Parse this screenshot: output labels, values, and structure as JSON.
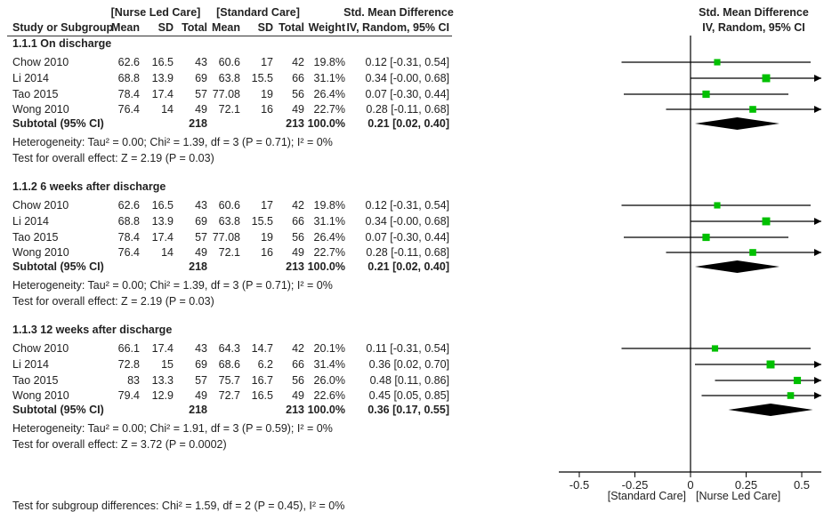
{
  "header": {
    "group1": "[Nurse Led Care]",
    "group2": "[Standard Care]",
    "effect_title": "Std. Mean Difference",
    "effect_sub": "IV, Random, 95% CI",
    "plot_title": "Std. Mean Difference",
    "plot_sub": "IV, Random, 95% CI",
    "columns": [
      "Study or Subgroup",
      "Mean",
      "SD",
      "Total",
      "Mean",
      "SD",
      "Total",
      "Weight"
    ]
  },
  "chart_data": {
    "type": "forest",
    "xlim": [
      -0.5,
      0.5
    ],
    "xticks": [
      "-0.5",
      "-0.25",
      "0",
      "0.25",
      "0.5"
    ],
    "xtick_values": [
      -0.5,
      -0.25,
      0,
      0.25,
      0.5
    ],
    "xlabel_left": "[Standard Care]",
    "xlabel_right": "[Nurse Led Care]",
    "marker_color": "#00c000",
    "subgroups": [
      {
        "title": "1.1.1 On discharge",
        "studies": [
          {
            "name": "Chow 2010",
            "m1": "62.6",
            "sd1": "16.5",
            "n1": "43",
            "m2": "60.6",
            "sd2": "17",
            "n2": "42",
            "weight": "19.8%",
            "ci_text": "0.12 [-0.31, 0.54]",
            "est": 0.12,
            "lo": -0.31,
            "hi": 0.54,
            "w": 19.8
          },
          {
            "name": "Li 2014",
            "m1": "68.8",
            "sd1": "13.9",
            "n1": "69",
            "m2": "63.8",
            "sd2": "15.5",
            "n2": "66",
            "weight": "31.1%",
            "ci_text": "0.34 [-0.00, 0.68]",
            "est": 0.34,
            "lo": 0.0,
            "hi": 0.68,
            "w": 31.1
          },
          {
            "name": "Tao 2015",
            "m1": "78.4",
            "sd1": "17.4",
            "n1": "57",
            "m2": "77.08",
            "sd2": "19",
            "n2": "56",
            "weight": "26.4%",
            "ci_text": "0.07 [-0.30, 0.44]",
            "est": 0.07,
            "lo": -0.3,
            "hi": 0.44,
            "w": 26.4
          },
          {
            "name": "Wong 2010",
            "m1": "76.4",
            "sd1": "14",
            "n1": "49",
            "m2": "72.1",
            "sd2": "16",
            "n2": "49",
            "weight": "22.7%",
            "ci_text": "0.28 [-0.11, 0.68]",
            "est": 0.28,
            "lo": -0.11,
            "hi": 0.68,
            "w": 22.7
          }
        ],
        "subtotal": {
          "label": "Subtotal (95% CI)",
          "n1": "218",
          "n2": "213",
          "weight": "100.0%",
          "ci_text": "0.21 [0.02, 0.40]",
          "est": 0.21,
          "lo": 0.02,
          "hi": 0.4
        },
        "heterogeneity": "Heterogeneity: Tau² = 0.00; Chi² = 1.39, df = 3 (P = 0.71); I² = 0%",
        "overall": "Test for overall effect: Z = 2.19 (P = 0.03)"
      },
      {
        "title": "1.1.2 6 weeks after discharge",
        "studies": [
          {
            "name": "Chow 2010",
            "m1": "62.6",
            "sd1": "16.5",
            "n1": "43",
            "m2": "60.6",
            "sd2": "17",
            "n2": "42",
            "weight": "19.8%",
            "ci_text": "0.12 [-0.31, 0.54]",
            "est": 0.12,
            "lo": -0.31,
            "hi": 0.54,
            "w": 19.8
          },
          {
            "name": "Li 2014",
            "m1": "68.8",
            "sd1": "13.9",
            "n1": "69",
            "m2": "63.8",
            "sd2": "15.5",
            "n2": "66",
            "weight": "31.1%",
            "ci_text": "0.34 [-0.00, 0.68]",
            "est": 0.34,
            "lo": 0.0,
            "hi": 0.68,
            "w": 31.1
          },
          {
            "name": "Tao 2015",
            "m1": "78.4",
            "sd1": "17.4",
            "n1": "57",
            "m2": "77.08",
            "sd2": "19",
            "n2": "56",
            "weight": "26.4%",
            "ci_text": "0.07 [-0.30, 0.44]",
            "est": 0.07,
            "lo": -0.3,
            "hi": 0.44,
            "w": 26.4
          },
          {
            "name": "Wong 2010",
            "m1": "76.4",
            "sd1": "14",
            "n1": "49",
            "m2": "72.1",
            "sd2": "16",
            "n2": "49",
            "weight": "22.7%",
            "ci_text": "0.28 [-0.11, 0.68]",
            "est": 0.28,
            "lo": -0.11,
            "hi": 0.68,
            "w": 22.7
          }
        ],
        "subtotal": {
          "label": "Subtotal (95% CI)",
          "n1": "218",
          "n2": "213",
          "weight": "100.0%",
          "ci_text": "0.21 [0.02, 0.40]",
          "est": 0.21,
          "lo": 0.02,
          "hi": 0.4
        },
        "heterogeneity": "Heterogeneity: Tau² = 0.00; Chi² = 1.39, df = 3 (P = 0.71); I² = 0%",
        "overall": "Test for overall effect: Z = 2.19 (P = 0.03)"
      },
      {
        "title": "1.1.3 12 weeks after discharge",
        "studies": [
          {
            "name": "Chow 2010",
            "m1": "66.1",
            "sd1": "17.4",
            "n1": "43",
            "m2": "64.3",
            "sd2": "14.7",
            "n2": "42",
            "weight": "20.1%",
            "ci_text": "0.11 [-0.31, 0.54]",
            "est": 0.11,
            "lo": -0.31,
            "hi": 0.54,
            "w": 20.1
          },
          {
            "name": "Li 2014",
            "m1": "72.8",
            "sd1": "15",
            "n1": "69",
            "m2": "68.6",
            "sd2": "6.2",
            "n2": "66",
            "weight": "31.4%",
            "ci_text": "0.36 [0.02, 0.70]",
            "est": 0.36,
            "lo": 0.02,
            "hi": 0.7,
            "w": 31.4
          },
          {
            "name": "Tao 2015",
            "m1": "83",
            "sd1": "13.3",
            "n1": "57",
            "m2": "75.7",
            "sd2": "16.7",
            "n2": "56",
            "weight": "26.0%",
            "ci_text": "0.48 [0.11, 0.86]",
            "est": 0.48,
            "lo": 0.11,
            "hi": 0.86,
            "w": 26.0
          },
          {
            "name": "Wong 2010",
            "m1": "79.4",
            "sd1": "12.9",
            "n1": "49",
            "m2": "72.7",
            "sd2": "16.5",
            "n2": "49",
            "weight": "22.6%",
            "ci_text": "0.45 [0.05, 0.85]",
            "est": 0.45,
            "lo": 0.05,
            "hi": 0.85,
            "w": 22.6
          }
        ],
        "subtotal": {
          "label": "Subtotal (95% CI)",
          "n1": "218",
          "n2": "213",
          "weight": "100.0%",
          "ci_text": "0.36 [0.17, 0.55]",
          "est": 0.36,
          "lo": 0.17,
          "hi": 0.55
        },
        "heterogeneity": "Heterogeneity: Tau² = 0.00; Chi² = 1.91, df = 3 (P = 0.59); I² = 0%",
        "overall": "Test for overall effect: Z = 3.72 (P = 0.0002)"
      }
    ],
    "subgroup_test": "Test for subgroup differences: Chi² = 1.59, df = 2 (P = 0.45), I² = 0%"
  }
}
